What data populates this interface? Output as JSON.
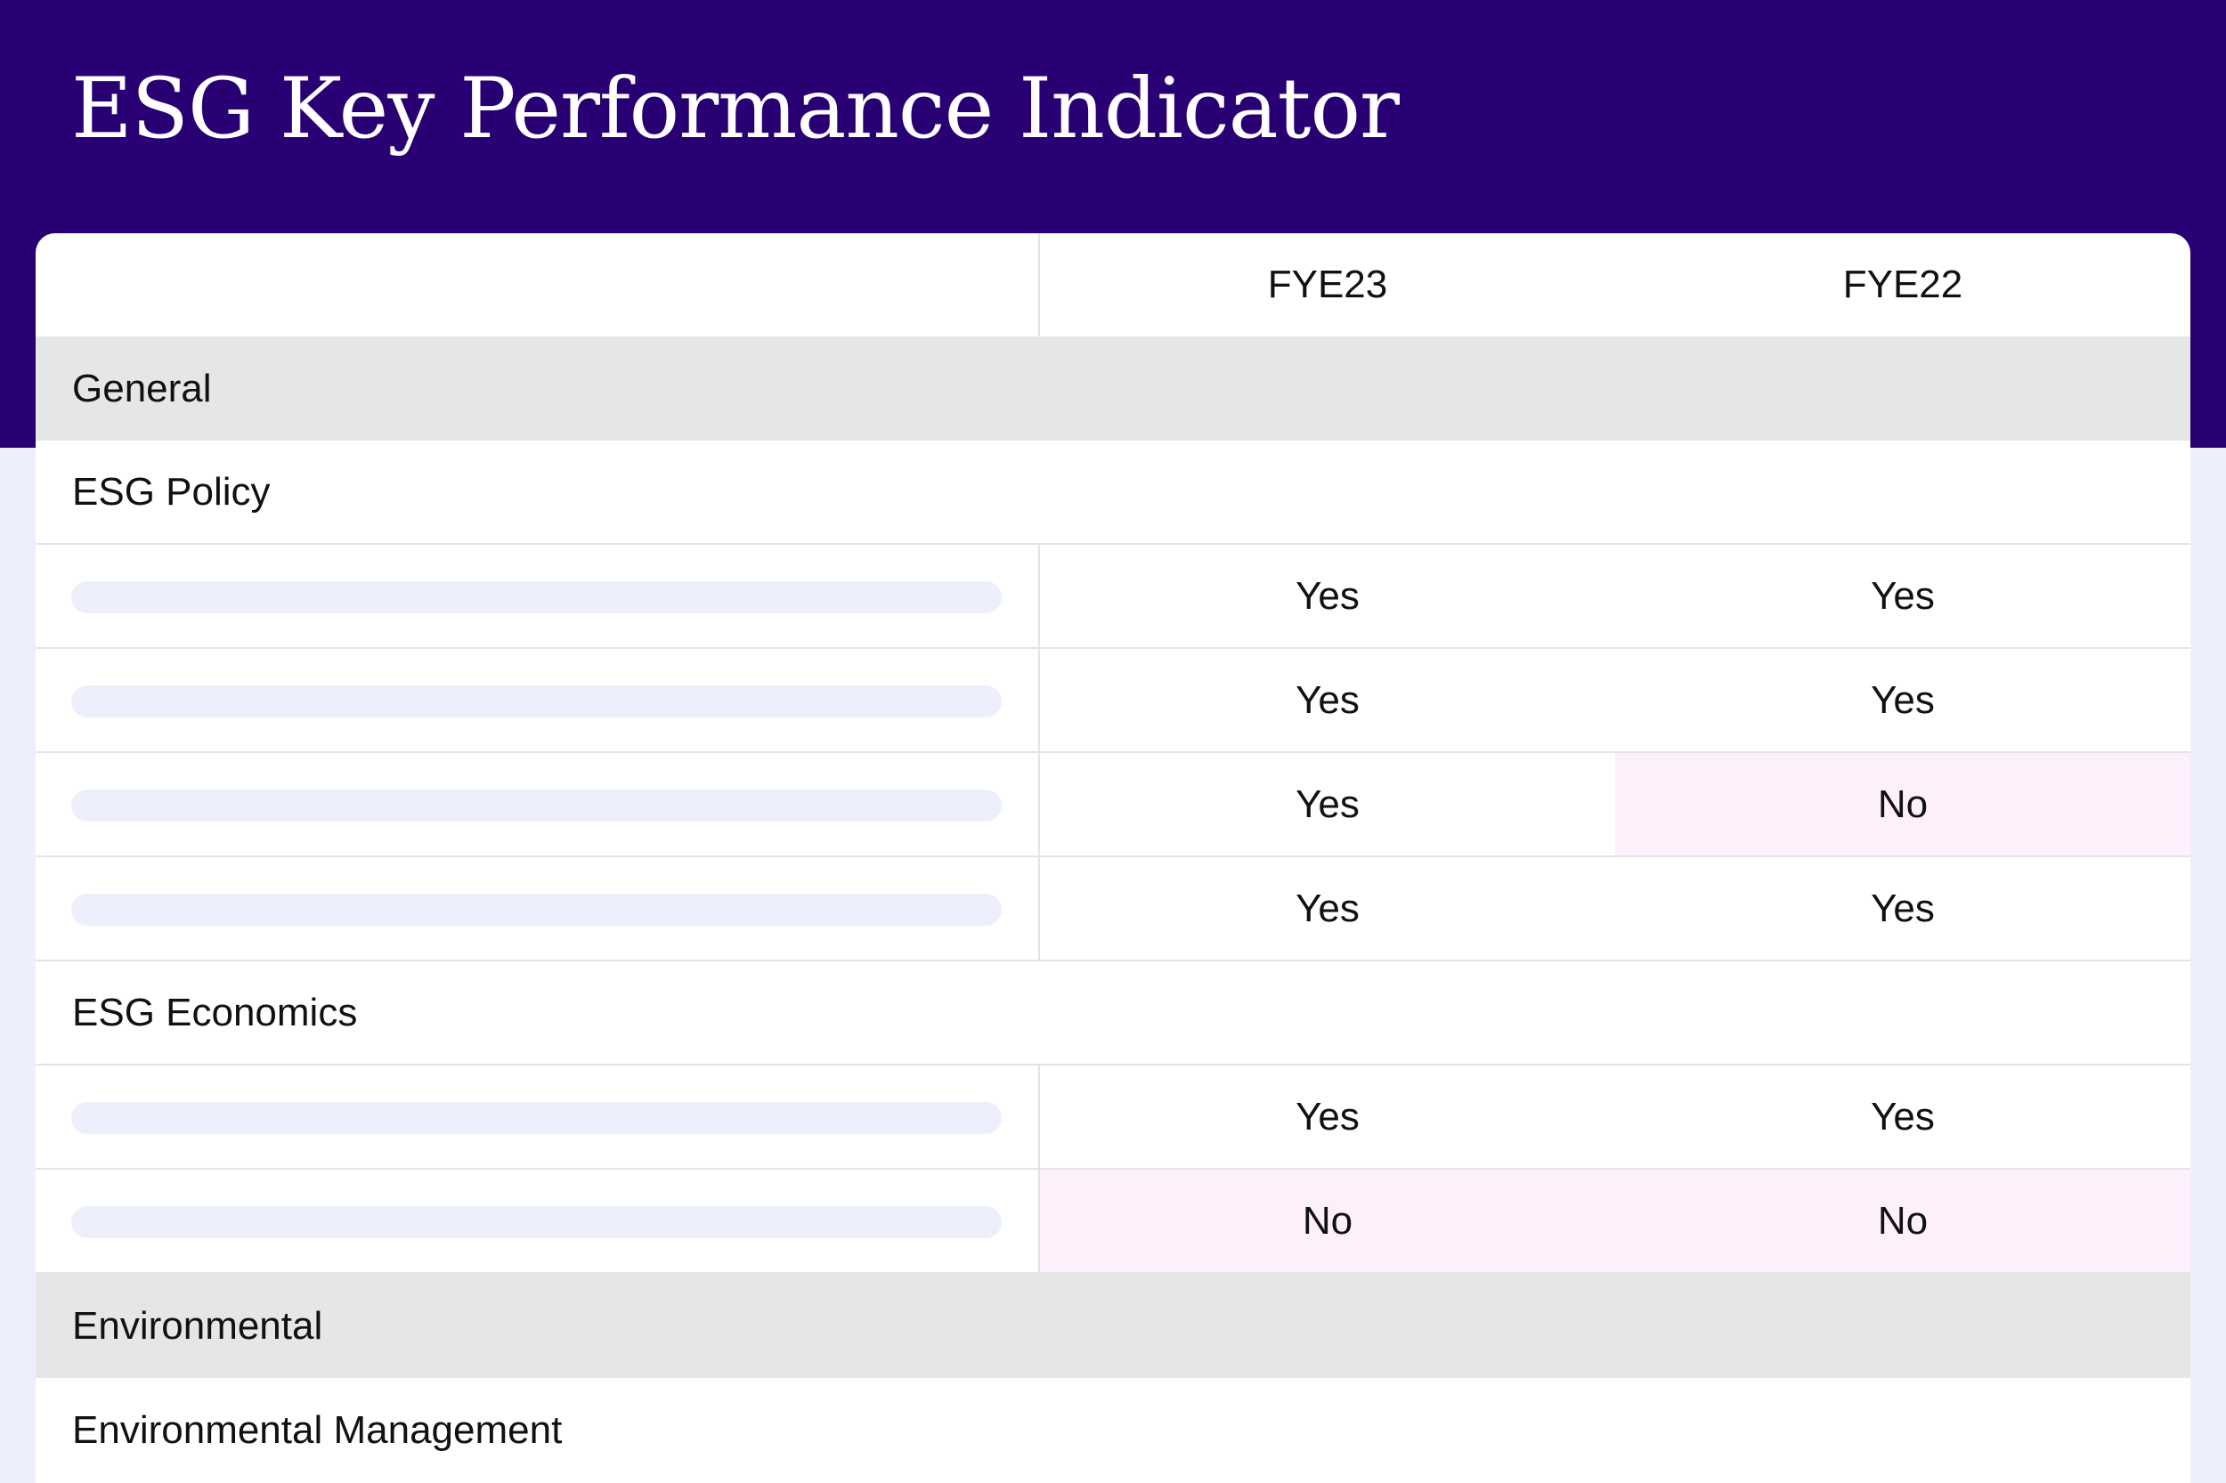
{
  "title": "ESG Key Performance Indicator",
  "colors": {
    "banner": "#280074",
    "page_background": "#eeeffc",
    "section_background": "#e6e6e6",
    "negative_cell": "#fdf0fb"
  },
  "columns": [
    "FYE23",
    "FYE22"
  ],
  "rows": [
    {
      "type": "section",
      "label": "General"
    },
    {
      "type": "group",
      "label": "ESG Policy"
    },
    {
      "type": "item",
      "values": [
        "Yes",
        "Yes"
      ]
    },
    {
      "type": "item",
      "values": [
        "Yes",
        "Yes"
      ]
    },
    {
      "type": "item",
      "values": [
        "Yes",
        "No"
      ]
    },
    {
      "type": "item",
      "values": [
        "Yes",
        "Yes"
      ]
    },
    {
      "type": "group",
      "label": "ESG Economics"
    },
    {
      "type": "item",
      "values": [
        "Yes",
        "Yes"
      ]
    },
    {
      "type": "item",
      "values": [
        "No",
        "No"
      ]
    },
    {
      "type": "section",
      "label": "Environmental"
    },
    {
      "type": "group",
      "label": "Environmental Management"
    }
  ]
}
